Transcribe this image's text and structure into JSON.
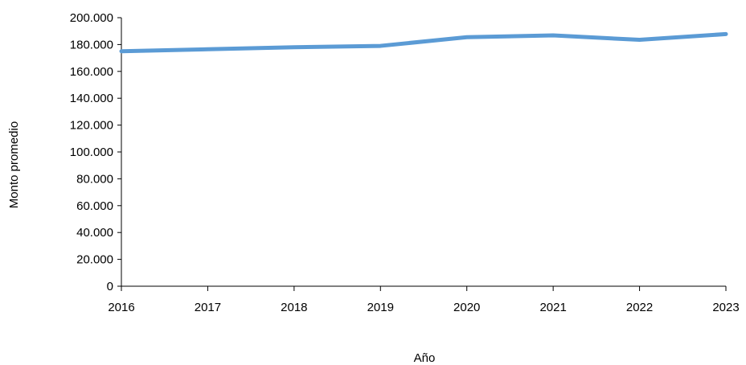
{
  "chart_data": {
    "type": "line",
    "title": "",
    "xlabel": "Año",
    "ylabel": "Monto promedio",
    "x": [
      "2016",
      "2017",
      "2018",
      "2019",
      "2020",
      "2021",
      "2022",
      "2023"
    ],
    "series": [
      {
        "values": [
          175000,
          176500,
          178000,
          179000,
          185500,
          186800,
          183500,
          187800
        ],
        "color": "#5B9BD5"
      }
    ],
    "ylim": [
      0,
      200000
    ],
    "yticks": [
      0,
      20000,
      40000,
      60000,
      80000,
      100000,
      120000,
      140000,
      160000,
      180000,
      200000
    ],
    "ytick_labels": [
      "0",
      "20.000",
      "40.000",
      "60.000",
      "80.000",
      "100.000",
      "120.000",
      "140.000",
      "160.000",
      "180.000",
      "200.000"
    ],
    "grid": false,
    "legend": false
  }
}
